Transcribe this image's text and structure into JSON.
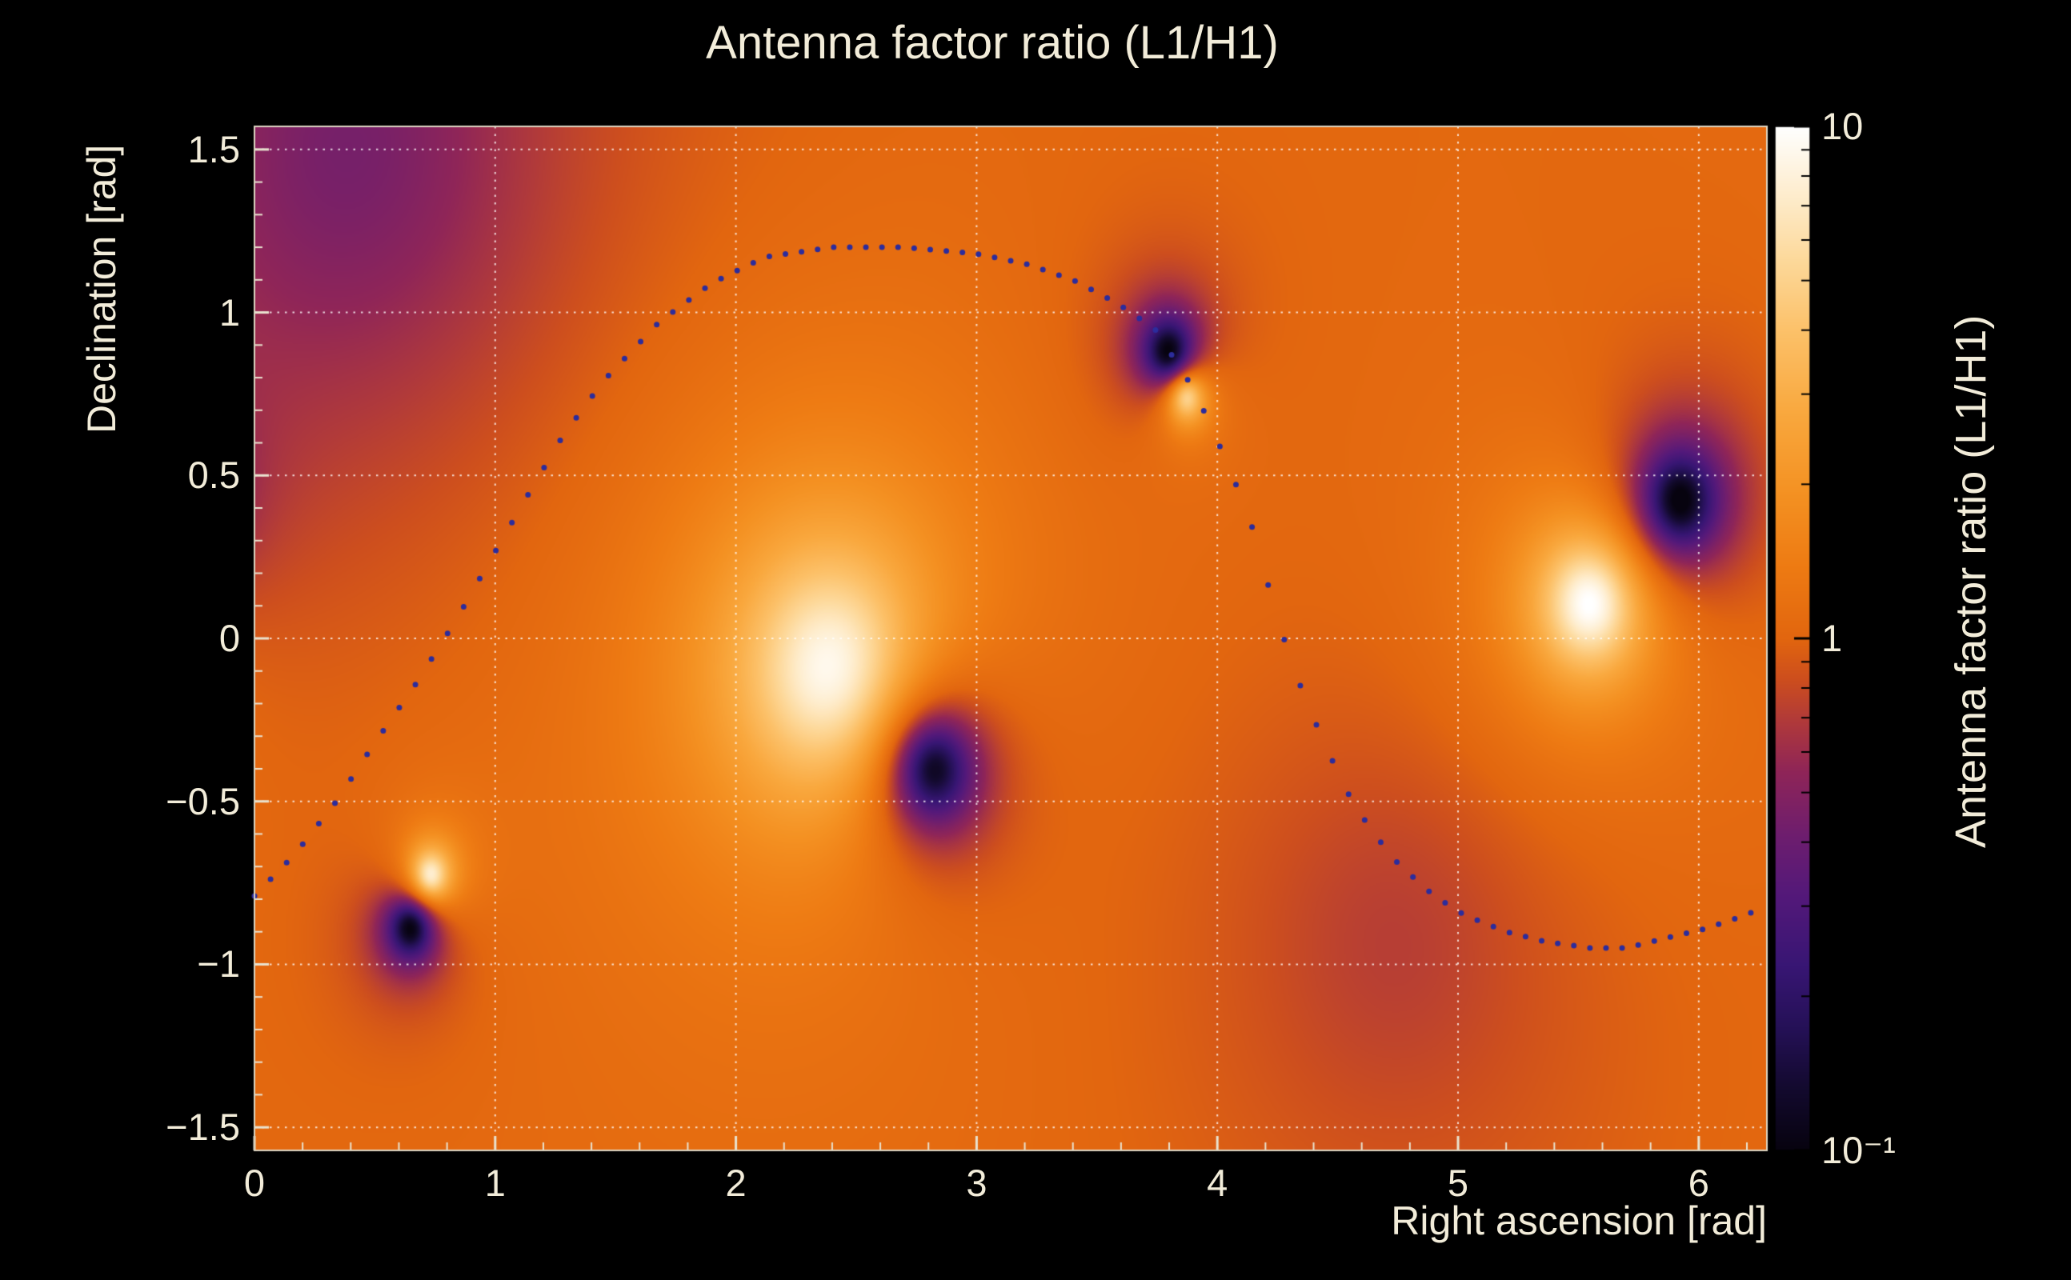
{
  "page": {
    "background": "#000000",
    "text_color": "#f2ecd9"
  },
  "chart_data": {
    "type": "heatmap",
    "title": "Antenna factor ratio (L1/H1)",
    "xlabel": "Right ascension [rad]",
    "ylabel": "Declination [rad]",
    "x_range": [
      0,
      6.2832
    ],
    "y_range": [
      -1.5708,
      1.5708
    ],
    "x_ticks": {
      "values": [
        0,
        1,
        2,
        3,
        4,
        5,
        6
      ],
      "labels": [
        "0",
        "1",
        "2",
        "3",
        "4",
        "5",
        "6"
      ],
      "minor_step": 0.2
    },
    "y_ticks": {
      "values": [
        -1.5,
        -1,
        -0.5,
        0,
        0.5,
        1,
        1.5
      ],
      "labels": [
        "−1.5",
        "−1",
        "−0.5",
        "0",
        "0.5",
        "1",
        "1.5"
      ],
      "minor_step": 0.1
    },
    "grid": {
      "show": true,
      "line_style": "dotted",
      "color": "rgba(255,255,255,0.8)"
    },
    "frame_color": "#ddd6c2",
    "tick_color": "#e9e3d0",
    "colorbar": {
      "label": "Antenna factor ratio (L1/H1)",
      "scale": "log",
      "range": [
        0.1,
        10
      ],
      "ticks": [
        {
          "value": 10,
          "label": "10"
        },
        {
          "value": 1,
          "label": "1"
        },
        {
          "value": 0.1,
          "label": "10⁻¹"
        }
      ]
    },
    "colormap_stops": [
      [
        0.0,
        "#07030f"
      ],
      [
        0.06,
        "#130a2e"
      ],
      [
        0.12,
        "#251157"
      ],
      [
        0.18,
        "#381674"
      ],
      [
        0.25,
        "#54197a"
      ],
      [
        0.31,
        "#6f1e6e"
      ],
      [
        0.37,
        "#8f2558"
      ],
      [
        0.42,
        "#b13a3a"
      ],
      [
        0.46,
        "#cd4e1e"
      ],
      [
        0.5,
        "#e2660f"
      ],
      [
        0.57,
        "#ee7b13"
      ],
      [
        0.64,
        "#f49122"
      ],
      [
        0.72,
        "#f9a83e"
      ],
      [
        0.8,
        "#fcc169"
      ],
      [
        0.87,
        "#fdd99b"
      ],
      [
        0.93,
        "#feeccb"
      ],
      [
        1.0,
        "#ffffff"
      ]
    ],
    "field": {
      "base_log10_ratio": 0.03,
      "features": [
        {
          "kind": "peak",
          "ra": 2.4,
          "dec": -0.1,
          "log10_amp": 1.1,
          "width": 0.4,
          "wrap": true
        },
        {
          "kind": "null",
          "ra": 2.82,
          "dec": -0.4,
          "log10_amp": -1.3,
          "width": 0.17,
          "wrap": true
        },
        {
          "kind": "peak",
          "ra": 0.73,
          "dec": -0.73,
          "log10_amp": 1.15,
          "width": 0.09,
          "wrap": true
        },
        {
          "kind": "null",
          "ra": 0.65,
          "dec": -0.885,
          "log10_amp": -1.25,
          "width": 0.1,
          "wrap": true
        },
        {
          "kind": "peak",
          "ra": 3.87,
          "dec": 0.745,
          "log10_amp": 1.1,
          "width": 0.085,
          "wrap": true
        },
        {
          "kind": "null",
          "ra": 3.8,
          "dec": 0.875,
          "log10_amp": -1.3,
          "width": 0.11,
          "wrap": true
        },
        {
          "kind": "peak",
          "ra": 5.55,
          "dec": 0.11,
          "log10_amp": 1.15,
          "width": 0.22,
          "wrap": true
        },
        {
          "kind": "null",
          "ra": 5.92,
          "dec": 0.42,
          "log10_amp": -1.25,
          "width": 0.16,
          "wrap": true
        },
        {
          "kind": "background-low",
          "ra": 0.4,
          "dec": 1.5,
          "log10_amp": -0.4,
          "width": 0.85,
          "wrap": false
        },
        {
          "kind": "background-low",
          "ra": 4.75,
          "dec": -0.9,
          "log10_amp": -0.2,
          "width": 0.75,
          "wrap": false
        }
      ]
    },
    "trajectory": {
      "style": "dotted",
      "color": "#2c2c9c",
      "dot_radius": 3.5,
      "n_dots": 94,
      "anchors": [
        [
          0.0,
          -0.79
        ],
        [
          0.17,
          -0.66
        ],
        [
          0.34,
          -0.5
        ],
        [
          0.5,
          -0.32
        ],
        [
          0.67,
          -0.14
        ],
        [
          0.84,
          0.06
        ],
        [
          0.98,
          0.24
        ],
        [
          1.12,
          0.42
        ],
        [
          1.28,
          0.62
        ],
        [
          1.45,
          0.79
        ],
        [
          1.68,
          0.97
        ],
        [
          1.9,
          1.09
        ],
        [
          2.12,
          1.17
        ],
        [
          2.4,
          1.2
        ],
        [
          2.7,
          1.2
        ],
        [
          3.0,
          1.18
        ],
        [
          3.2,
          1.15
        ],
        [
          3.4,
          1.1
        ],
        [
          3.58,
          1.03
        ],
        [
          3.74,
          0.95
        ],
        [
          3.88,
          0.79
        ],
        [
          3.97,
          0.66
        ],
        [
          4.05,
          0.52
        ],
        [
          4.13,
          0.38
        ],
        [
          4.19,
          0.22
        ],
        [
          4.25,
          0.06
        ],
        [
          4.32,
          -0.1
        ],
        [
          4.42,
          -0.28
        ],
        [
          4.53,
          -0.46
        ],
        [
          4.64,
          -0.59
        ],
        [
          4.75,
          -0.69
        ],
        [
          4.9,
          -0.79
        ],
        [
          5.03,
          -0.85
        ],
        [
          5.2,
          -0.9
        ],
        [
          5.36,
          -0.93
        ],
        [
          5.55,
          -0.95
        ],
        [
          5.7,
          -0.95
        ],
        [
          5.86,
          -0.92
        ],
        [
          6.03,
          -0.89
        ],
        [
          6.15,
          -0.86
        ],
        [
          6.26,
          -0.83
        ]
      ]
    }
  }
}
